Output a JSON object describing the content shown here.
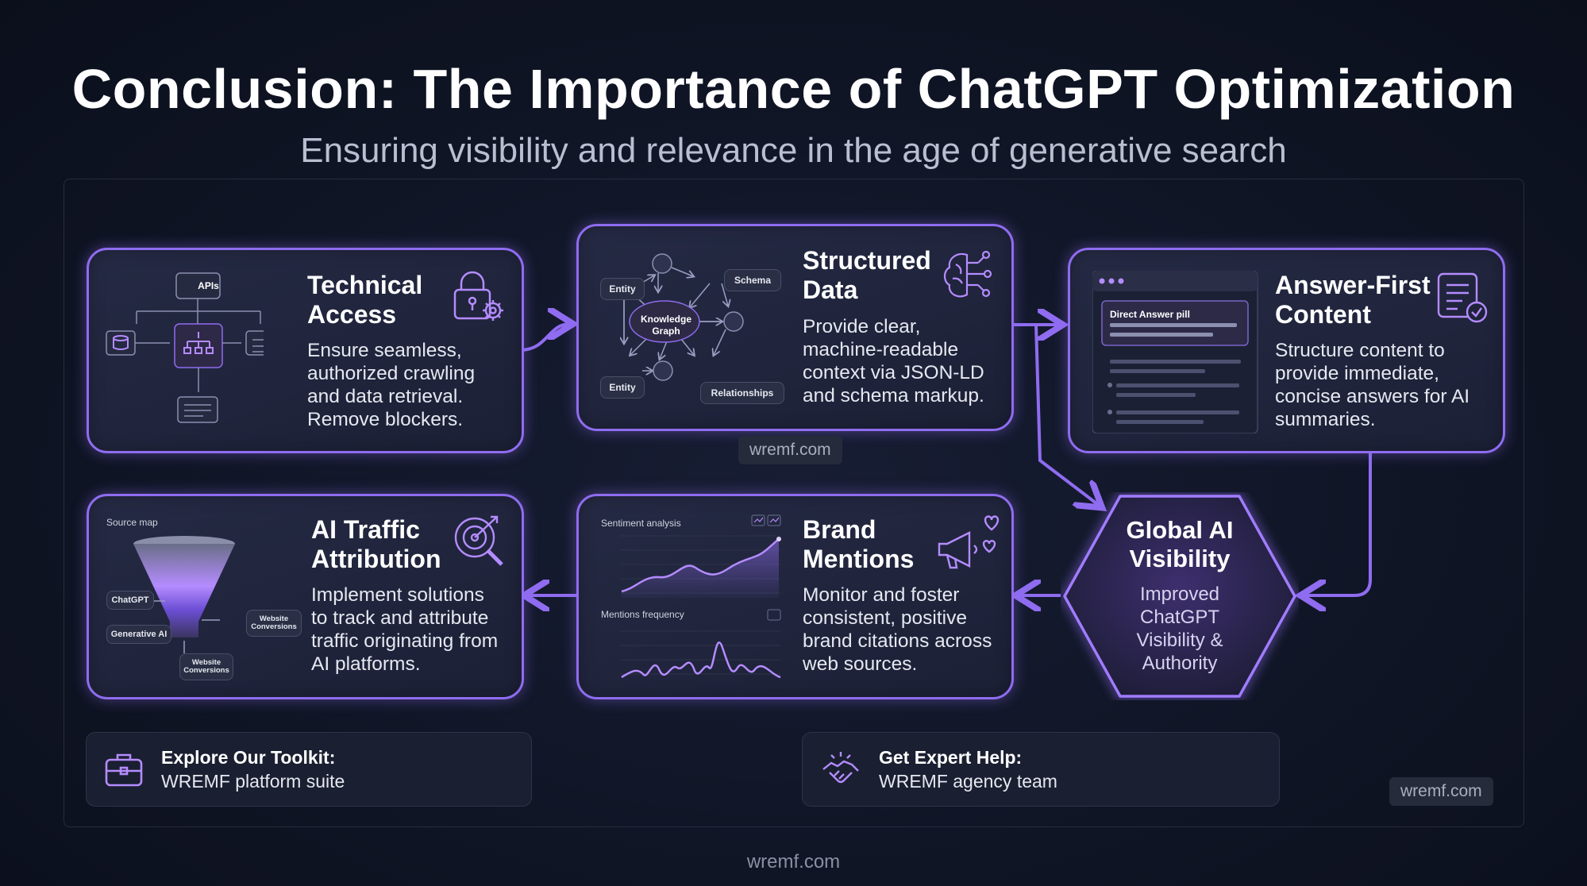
{
  "header": {
    "title": "Conclusion: The Importance of ChatGPT Optimization",
    "subtitle": "Ensuring visibility and relevance in the age of generative search"
  },
  "cards": {
    "technical": {
      "title_line1": "Technical",
      "title_line2": "Access",
      "desc": [
        "Ensure seamless,",
        "authorized crawling",
        "and data retrieval.",
        "Remove blockers."
      ],
      "diagram": {
        "apis_label": "APIs"
      },
      "icon": "lock-gear-icon"
    },
    "structured": {
      "title_line1": "Structured",
      "title_line2": "Data",
      "desc": [
        "Provide clear,",
        "machine-readable",
        "context via JSON-LD",
        "and schema markup."
      ],
      "graph": {
        "entity1": "Entity",
        "schema": "Schema",
        "knowledge_graph_line1": "Knowledge",
        "knowledge_graph_line2": "Graph",
        "entity2": "Entity",
        "relationships": "Relationships"
      },
      "icon": "brain-network-icon"
    },
    "answer": {
      "title_line1": "Answer-First",
      "title_line2": "Content",
      "desc": [
        "Structure content to",
        "provide immediate,",
        "concise answers for AI",
        "summaries."
      ],
      "mock": {
        "pill_label": "Direct Answer pill"
      },
      "icon": "document-check-icon"
    },
    "traffic": {
      "title_line1": "AI Traffic",
      "title_line2": "Attribution",
      "desc": [
        "Implement solutions",
        "to track and attribute",
        "traffic originating from",
        "AI platforms."
      ],
      "funnel": {
        "source_map": "Source map",
        "chatgpt": "ChatGPT",
        "generative_ai": "Generative AI",
        "website_conv_line1": "Website",
        "website_conv_line2": "Conversions"
      },
      "icon": "target-search-icon"
    },
    "brand": {
      "title_line1": "Brand",
      "title_line2": "Mentions",
      "desc": [
        "Monitor and foster",
        "consistent, positive",
        "brand citations across",
        "web sources."
      ],
      "charts": {
        "sentiment_label": "Sentiment analysis",
        "mentions_label": "Mentions frequency"
      },
      "icon": "megaphone-hearts-icon"
    },
    "global": {
      "title_line1": "Global AI",
      "title_line2": "Visibility",
      "desc": [
        "Improved",
        "ChatGPT",
        "Visibility &",
        "Authority"
      ]
    }
  },
  "footer": {
    "toolkit_title": "Explore Our Toolkit:",
    "toolkit_sub": "WREMF platform suite",
    "toolkit_icon": "briefcase-icon",
    "help_title": "Get Expert Help:",
    "help_sub": "WREMF agency team",
    "help_icon": "handshake-icon"
  },
  "watermarks": {
    "center": "wremf.com",
    "right": "wremf.com",
    "bottom": "wremf.com"
  },
  "colors": {
    "accent": "#8f6cf0",
    "background": "#0f1424",
    "card": "#1f2339"
  }
}
